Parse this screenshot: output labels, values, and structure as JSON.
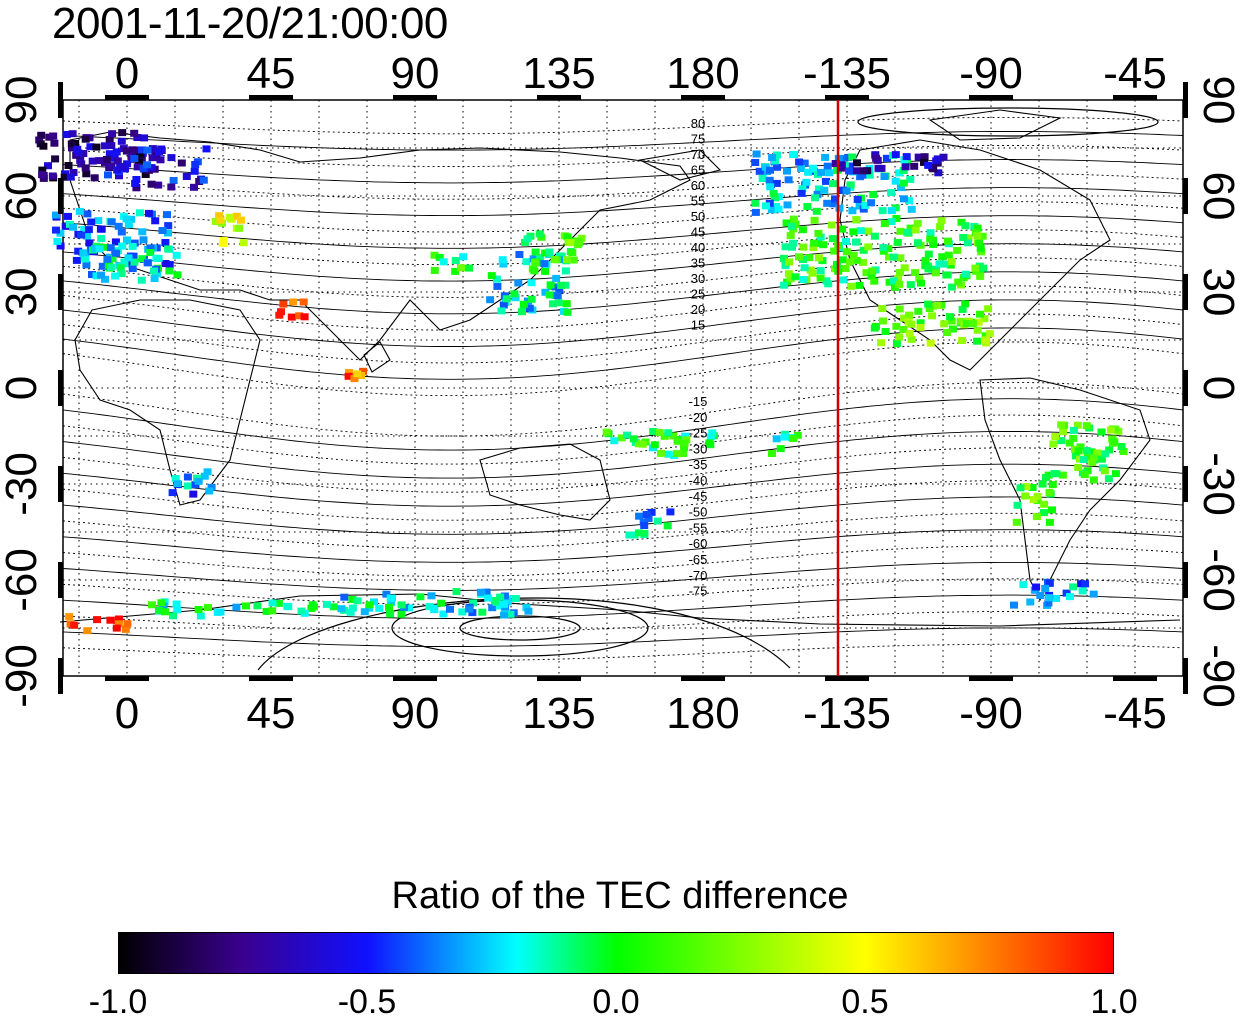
{
  "timestamp": "2001-11-20/21:00:00",
  "map": {
    "type": "global TEC difference map",
    "top_lon_labels": [
      "0",
      "45",
      "90",
      "135",
      "180",
      "-135",
      "-90",
      "-45"
    ],
    "bottom_lon_labels": [
      "0",
      "45",
      "90",
      "135",
      "180",
      "-135",
      "-90",
      "-45"
    ],
    "left_lat_labels": [
      "90",
      "60",
      "30",
      "0",
      "-30",
      "-60",
      "-90"
    ],
    "right_lat_labels": [
      "90",
      "60",
      "30",
      "0",
      "-30",
      "-60",
      "-90"
    ],
    "north_contour_labels": [
      "80",
      "75",
      "70",
      "65",
      "60",
      "55",
      "50",
      "45",
      "40",
      "35",
      "30",
      "25",
      "20",
      "15"
    ],
    "south_contour_labels": [
      "-15",
      "-20",
      "-25",
      "-30",
      "-35",
      "-40",
      "-45",
      "-50",
      "-55",
      "-60",
      "-65",
      "-70",
      "-75"
    ],
    "marker_line_lon": -135,
    "marker_line_color": "#cc0000",
    "grid": "dotted"
  },
  "colorbar": {
    "title": "Ratio of the TEC difference",
    "ticks": [
      "-1.0",
      "-0.5",
      "0.0",
      "0.5",
      "1.0"
    ],
    "range": [
      -1.0,
      1.0
    ],
    "colors": [
      "#000000",
      "#3a0090",
      "#1010ff",
      "#00ffff",
      "#00ff00",
      "#ffff00",
      "#ff8000",
      "#ff0000"
    ]
  }
}
